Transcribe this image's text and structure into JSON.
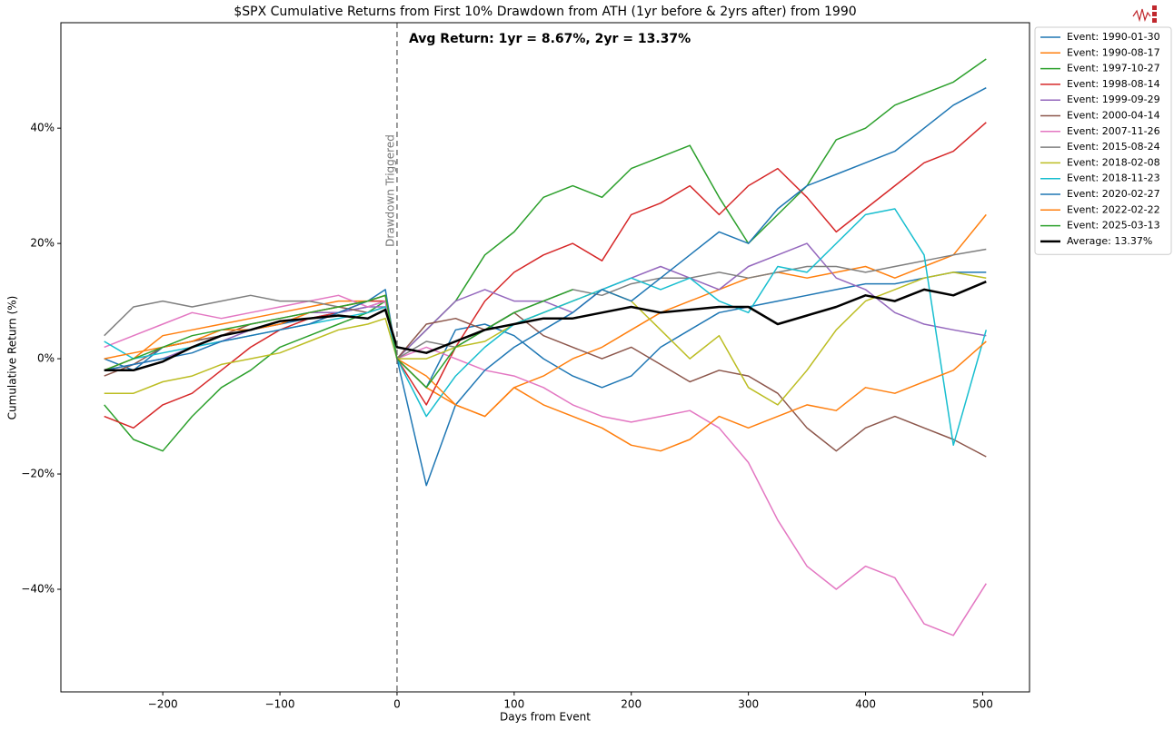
{
  "chart_data": {
    "type": "line",
    "title": "$SPX Cumulative Returns from First 10% Drawdown from ATH (1yr before & 2yrs after) from 1990",
    "x_label": "Days from Event",
    "y_label": "Cumulative Return (%)",
    "annotation": "Avg Return: 1yr = 8.67%, 2yr = 13.37%",
    "vline": 0,
    "vline_label": "Drawdown Triggered",
    "xlim": [
      -287,
      540
    ],
    "ylim": [
      -57.8,
      58.3
    ],
    "xticks": [
      {
        "value": -200,
        "label": "−200"
      },
      {
        "value": -100,
        "label": "−100"
      },
      0,
      100,
      200,
      300,
      400,
      500
    ],
    "yticks": [
      {
        "value": -40,
        "label": "−40%"
      },
      {
        "value": -20,
        "label": "−20%"
      },
      {
        "value": 0,
        "label": "0%"
      },
      {
        "value": 20,
        "label": "20%"
      },
      {
        "value": 40,
        "label": "40%"
      }
    ],
    "legend": "upper left outside",
    "x": [
      -250,
      -225,
      -200,
      -175,
      -150,
      -125,
      -100,
      -75,
      -50,
      -25,
      -10,
      0,
      25,
      50,
      75,
      100,
      125,
      150,
      175,
      200,
      225,
      250,
      275,
      300,
      325,
      350,
      375,
      400,
      425,
      450,
      475,
      503
    ],
    "series": [
      {
        "name": "Event: 1990-01-30",
        "color": "#1f77b4",
        "values": [
          0,
          -2,
          2,
          3,
          4,
          5,
          6,
          7,
          8,
          9,
          10,
          0,
          -5,
          5,
          6,
          4,
          0,
          -3,
          -5,
          -3,
          2,
          5,
          8,
          9,
          10,
          11,
          12,
          13,
          13,
          14,
          15,
          15
        ]
      },
      {
        "name": "Event: 1990-08-17",
        "color": "#ff7f0e",
        "values": [
          -2,
          0,
          4,
          5,
          6,
          7,
          8,
          9,
          10,
          10,
          11,
          0,
          -5,
          -8,
          -10,
          -5,
          -3,
          0,
          2,
          5,
          8,
          10,
          12,
          14,
          15,
          14,
          15,
          16,
          14,
          16,
          18,
          25
        ]
      },
      {
        "name": "Event: 1997-10-27",
        "color": "#2ca02c",
        "values": [
          -8,
          -14,
          -16,
          -10,
          -5,
          -2,
          2,
          4,
          6,
          8,
          10,
          0,
          5,
          10,
          18,
          22,
          28,
          30,
          28,
          33,
          35,
          37,
          28,
          20,
          25,
          30,
          38,
          40,
          44,
          46,
          48,
          52
        ]
      },
      {
        "name": "Event: 1998-08-14",
        "color": "#d62728",
        "values": [
          -10,
          -12,
          -8,
          -6,
          -2,
          2,
          5,
          7,
          8,
          10,
          10,
          0,
          -8,
          2,
          10,
          15,
          18,
          20,
          17,
          25,
          27,
          30,
          25,
          30,
          33,
          28,
          22,
          26,
          30,
          34,
          36,
          41
        ]
      },
      {
        "name": "Event: 1999-09-29",
        "color": "#9467bd",
        "values": [
          -2,
          -1,
          0,
          2,
          3,
          5,
          6,
          8,
          8,
          9,
          9,
          0,
          5,
          10,
          12,
          10,
          10,
          8,
          12,
          14,
          16,
          14,
          12,
          16,
          18,
          20,
          14,
          12,
          8,
          6,
          5,
          4
        ]
      },
      {
        "name": "Event: 2000-04-14",
        "color": "#8c564b",
        "values": [
          -3,
          -1,
          2,
          3,
          4,
          6,
          7,
          8,
          9,
          8,
          9,
          0,
          6,
          7,
          5,
          8,
          4,
          2,
          0,
          2,
          -1,
          -4,
          -2,
          -3,
          -6,
          -12,
          -16,
          -12,
          -10,
          -12,
          -14,
          -17
        ]
      },
      {
        "name": "Event: 2007-11-26",
        "color": "#e377c2",
        "values": [
          2,
          4,
          6,
          8,
          7,
          8,
          9,
          10,
          11,
          9,
          10,
          0,
          2,
          0,
          -2,
          -3,
          -5,
          -8,
          -10,
          -11,
          -10,
          -9,
          -12,
          -18,
          -28,
          -36,
          -40,
          -36,
          -38,
          -46,
          -48,
          -39
        ]
      },
      {
        "name": "Event: 2015-08-24",
        "color": "#7f7f7f",
        "values": [
          4,
          9,
          10,
          9,
          10,
          11,
          10,
          10,
          9,
          10,
          11,
          0,
          3,
          2,
          5,
          8,
          10,
          12,
          11,
          13,
          14,
          14,
          15,
          14,
          15,
          16,
          16,
          15,
          16,
          17,
          18,
          19
        ]
      },
      {
        "name": "Event: 2018-02-08",
        "color": "#bcbd22",
        "values": [
          -6,
          -6,
          -4,
          -3,
          -1,
          0,
          1,
          3,
          5,
          6,
          7,
          0,
          0,
          2,
          3,
          6,
          8,
          10,
          12,
          10,
          5,
          0,
          4,
          -5,
          -8,
          -2,
          5,
          10,
          12,
          14,
          15,
          14
        ]
      },
      {
        "name": "Event: 2018-11-23",
        "color": "#17becf",
        "values": [
          3,
          0,
          1,
          2,
          3,
          4,
          5,
          6,
          7,
          8,
          9,
          0,
          -10,
          -3,
          2,
          6,
          8,
          10,
          12,
          14,
          12,
          14,
          10,
          8,
          16,
          15,
          20,
          25,
          26,
          18,
          -15,
          5
        ]
      },
      {
        "name": "Event: 2020-02-27",
        "color": "#1f77b4",
        "values": [
          -2,
          -1,
          0,
          1,
          3,
          4,
          5,
          6,
          8,
          10,
          12,
          0,
          -22,
          -8,
          -2,
          2,
          5,
          8,
          12,
          10,
          14,
          18,
          22,
          20,
          26,
          30,
          32,
          34,
          36,
          40,
          44,
          47
        ]
      },
      {
        "name": "Event: 2022-02-22",
        "color": "#ff7f0e",
        "values": [
          0,
          1,
          2,
          3,
          5,
          5,
          6,
          8,
          9,
          10,
          11,
          0,
          -3,
          -8,
          -10,
          -5,
          -8,
          -10,
          -12,
          -15,
          -16,
          -14,
          -10,
          -12,
          -10,
          -8,
          -9,
          -5,
          -6,
          -4,
          -2,
          3
        ]
      },
      {
        "name": "Event: 2025-03-13",
        "color": "#2ca02c",
        "values": [
          -2,
          0,
          2,
          4,
          5,
          6,
          7,
          8,
          9,
          10,
          11,
          0,
          -5,
          2,
          5,
          8,
          10,
          12,
          null,
          null,
          null,
          null,
          null,
          null,
          null,
          null,
          null,
          null,
          null,
          null,
          null,
          null
        ]
      },
      {
        "name": "Average: 13.37%",
        "color": "#000000",
        "width": 2.5,
        "values": [
          -2,
          -2,
          -0.5,
          2,
          4,
          5,
          6.5,
          7,
          7.5,
          7,
          8.5,
          2,
          1,
          3,
          5,
          6,
          7,
          7,
          8,
          9,
          8,
          8.5,
          9,
          9,
          6,
          7.5,
          9,
          11,
          10,
          12,
          11,
          13.37
        ]
      }
    ]
  }
}
